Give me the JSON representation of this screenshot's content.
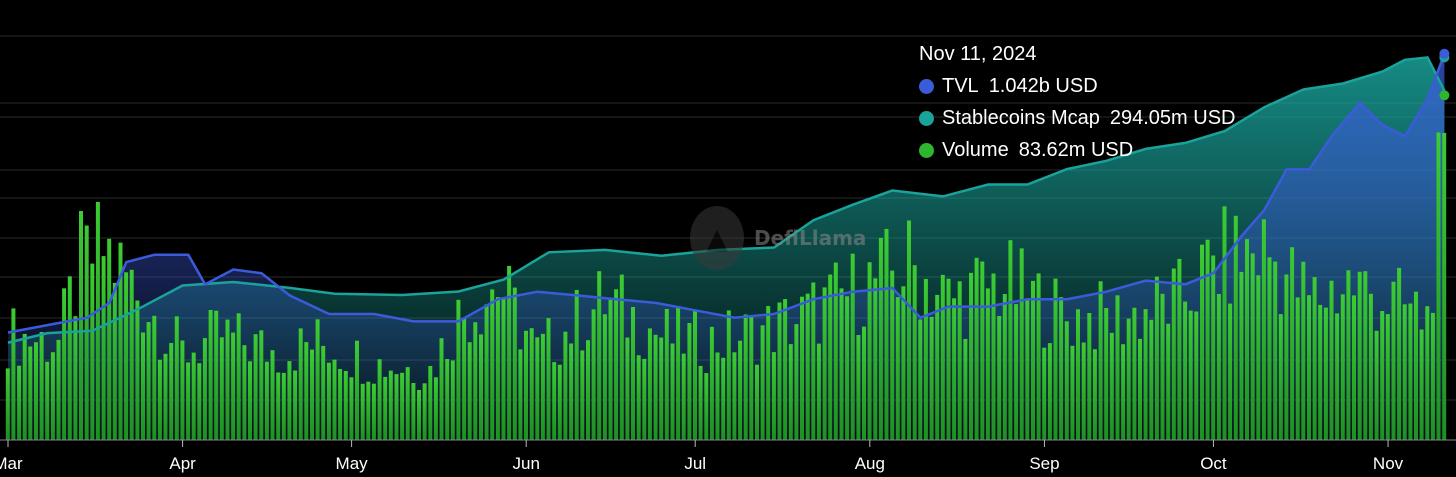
{
  "chart_data": {
    "type": "bar+line+area",
    "brand": "DefiLlama",
    "x_tick_labels": [
      "Mar",
      "Apr",
      "May",
      "Jun",
      "Jul",
      "Aug",
      "Sep",
      "Oct",
      "Nov"
    ],
    "x_range": [
      "2024-03-01",
      "2024-11-12"
    ],
    "grid": "horizontal",
    "legend": "tooltip top-right",
    "tooltip": {
      "date": "Nov 11, 2024",
      "items": [
        {
          "label": "TVL",
          "value": "1.042b USD",
          "color": "#3b5bdb"
        },
        {
          "label": "Stablecoins Mcap",
          "value": "294.05m USD",
          "color": "#1aa39b"
        },
        {
          "label": "Volume",
          "value": "83.62m USD",
          "color": "#2fb52f"
        }
      ]
    },
    "series": [
      {
        "name": "TVL",
        "kind": "line",
        "unit": "USD",
        "color": "#3b5bdb",
        "points": [
          [
            "2024-03-01",
            0.29
          ],
          [
            "2024-03-08",
            0.31
          ],
          [
            "2024-03-15",
            0.33
          ],
          [
            "2024-03-19",
            0.37
          ],
          [
            "2024-03-22",
            0.48
          ],
          [
            "2024-03-27",
            0.5
          ],
          [
            "2024-04-02",
            0.5
          ],
          [
            "2024-04-05",
            0.42
          ],
          [
            "2024-04-10",
            0.46
          ],
          [
            "2024-04-15",
            0.45
          ],
          [
            "2024-04-20",
            0.39
          ],
          [
            "2024-04-27",
            0.34
          ],
          [
            "2024-05-05",
            0.34
          ],
          [
            "2024-05-12",
            0.32
          ],
          [
            "2024-05-20",
            0.32
          ],
          [
            "2024-05-27",
            0.38
          ],
          [
            "2024-06-03",
            0.4
          ],
          [
            "2024-06-10",
            0.39
          ],
          [
            "2024-06-17",
            0.38
          ],
          [
            "2024-06-24",
            0.37
          ],
          [
            "2024-07-01",
            0.35
          ],
          [
            "2024-07-08",
            0.33
          ],
          [
            "2024-07-15",
            0.34
          ],
          [
            "2024-07-22",
            0.38
          ],
          [
            "2024-07-29",
            0.4
          ],
          [
            "2024-08-05",
            0.41
          ],
          [
            "2024-08-10",
            0.33
          ],
          [
            "2024-08-15",
            0.36
          ],
          [
            "2024-08-22",
            0.36
          ],
          [
            "2024-08-29",
            0.38
          ],
          [
            "2024-09-05",
            0.38
          ],
          [
            "2024-09-12",
            0.4
          ],
          [
            "2024-09-19",
            0.43
          ],
          [
            "2024-09-26",
            0.42
          ],
          [
            "2024-10-01",
            0.45
          ],
          [
            "2024-10-06",
            0.55
          ],
          [
            "2024-10-10",
            0.62
          ],
          [
            "2024-10-14",
            0.73
          ],
          [
            "2024-10-18",
            0.73
          ],
          [
            "2024-10-22",
            0.82
          ],
          [
            "2024-10-27",
            0.91
          ],
          [
            "2024-10-31",
            0.85
          ],
          [
            "2024-11-04",
            0.82
          ],
          [
            "2024-11-08",
            0.92
          ],
          [
            "2024-11-11",
            1.042
          ]
        ]
      },
      {
        "name": "Stablecoins Mcap",
        "kind": "area",
        "unit": "USD",
        "color": "#1aa39b",
        "points": [
          [
            "2024-03-01",
            82
          ],
          [
            "2024-03-08",
            90
          ],
          [
            "2024-03-16",
            92
          ],
          [
            "2024-03-24",
            110
          ],
          [
            "2024-04-01",
            130
          ],
          [
            "2024-04-10",
            133
          ],
          [
            "2024-04-20",
            128
          ],
          [
            "2024-04-28",
            123
          ],
          [
            "2024-05-10",
            122
          ],
          [
            "2024-05-20",
            125
          ],
          [
            "2024-05-28",
            135
          ],
          [
            "2024-06-05",
            158
          ],
          [
            "2024-06-15",
            160
          ],
          [
            "2024-06-25",
            155
          ],
          [
            "2024-07-05",
            160
          ],
          [
            "2024-07-15",
            162
          ],
          [
            "2024-07-22",
            185
          ],
          [
            "2024-07-29",
            198
          ],
          [
            "2024-08-05",
            210
          ],
          [
            "2024-08-14",
            205
          ],
          [
            "2024-08-22",
            215
          ],
          [
            "2024-08-29",
            215
          ],
          [
            "2024-09-05",
            228
          ],
          [
            "2024-09-12",
            235
          ],
          [
            "2024-09-19",
            245
          ],
          [
            "2024-09-26",
            250
          ],
          [
            "2024-10-03",
            260
          ],
          [
            "2024-10-10",
            280
          ],
          [
            "2024-10-17",
            295
          ],
          [
            "2024-10-24",
            300
          ],
          [
            "2024-10-31",
            310
          ],
          [
            "2024-11-04",
            320
          ],
          [
            "2024-11-08",
            322
          ],
          [
            "2024-11-11",
            294.05
          ]
        ]
      },
      {
        "name": "Volume",
        "kind": "bar",
        "unit": "USD",
        "color": "#2fb52f",
        "anchors": [
          [
            "2024-03-01",
            30
          ],
          [
            "2024-03-10",
            28
          ],
          [
            "2024-03-14",
            50
          ],
          [
            "2024-03-18",
            55
          ],
          [
            "2024-03-25",
            40
          ],
          [
            "2024-04-01",
            25
          ],
          [
            "2024-04-08",
            30
          ],
          [
            "2024-04-18",
            25
          ],
          [
            "2024-04-25",
            28
          ],
          [
            "2024-05-05",
            22
          ],
          [
            "2024-05-15",
            20
          ],
          [
            "2024-05-20",
            35
          ],
          [
            "2024-05-27",
            45
          ],
          [
            "2024-06-03",
            25
          ],
          [
            "2024-06-15",
            40
          ],
          [
            "2024-06-25",
            30
          ],
          [
            "2024-07-03",
            28
          ],
          [
            "2024-07-10",
            30
          ],
          [
            "2024-07-20",
            35
          ],
          [
            "2024-08-01",
            45
          ],
          [
            "2024-08-08",
            50
          ],
          [
            "2024-08-15",
            40
          ],
          [
            "2024-08-25",
            45
          ],
          [
            "2024-09-05",
            35
          ],
          [
            "2024-09-15",
            35
          ],
          [
            "2024-09-25",
            40
          ],
          [
            "2024-10-01",
            50
          ],
          [
            "2024-10-10",
            55
          ],
          [
            "2024-10-18",
            40
          ],
          [
            "2024-10-25",
            45
          ],
          [
            "2024-11-01",
            40
          ],
          [
            "2024-11-08",
            35
          ],
          [
            "2024-11-11",
            83.62
          ]
        ]
      }
    ]
  }
}
